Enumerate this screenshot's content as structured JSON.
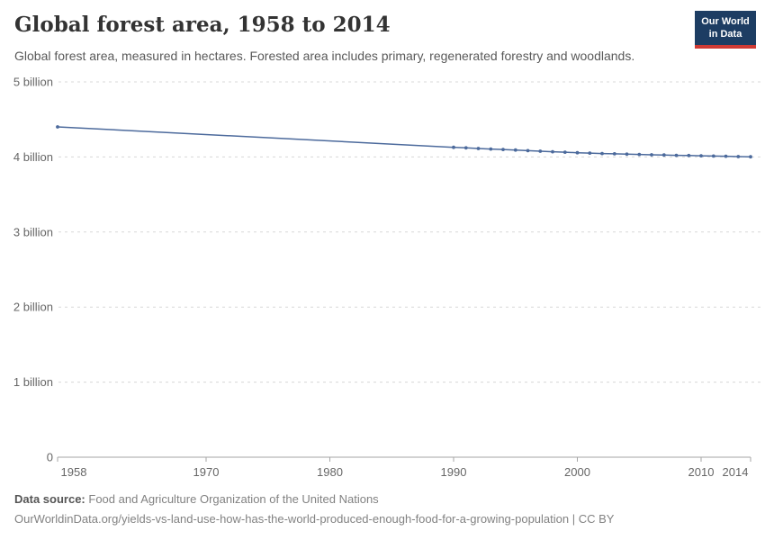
{
  "header": {
    "title": "Global forest area, 1958 to 2014",
    "subtitle": "Global forest area, measured in hectares. Forested area includes primary, regenerated forestry and woodlands.",
    "logo": {
      "line1": "Our World",
      "line2": "in Data",
      "bg_color": "#1d3d63",
      "bar_color": "#cf3a34"
    }
  },
  "chart_data": {
    "type": "line",
    "title": "Global forest area, 1958 to 2014",
    "series_name": "Global forest area",
    "unit": "hectares",
    "xlabel": "",
    "ylabel": "",
    "x": [
      1958,
      1990,
      1991,
      1992,
      1993,
      1994,
      1995,
      1996,
      1997,
      1998,
      1999,
      2000,
      2001,
      2002,
      2003,
      2004,
      2005,
      2006,
      2007,
      2008,
      2009,
      2010,
      2011,
      2012,
      2013,
      2014
    ],
    "values_billion_ha": [
      4.4,
      4.128,
      4.121,
      4.113,
      4.106,
      4.099,
      4.092,
      4.084,
      4.077,
      4.07,
      4.063,
      4.056,
      4.051,
      4.046,
      4.042,
      4.037,
      4.033,
      4.029,
      4.026,
      4.022,
      4.019,
      4.016,
      4.012,
      4.009,
      4.005,
      4.002
    ],
    "xlim": [
      1958,
      2014
    ],
    "ylim_billion": [
      0,
      5
    ],
    "x_ticks": [
      1958,
      1970,
      1980,
      1990,
      2000,
      2010,
      2014
    ],
    "y_ticks": [
      {
        "value": 0,
        "label": "0"
      },
      {
        "value": 1,
        "label": "1 billion"
      },
      {
        "value": 2,
        "label": "2 billion"
      },
      {
        "value": 3,
        "label": "3 billion"
      },
      {
        "value": 4,
        "label": "4 billion"
      },
      {
        "value": 5,
        "label": "5 billion"
      }
    ],
    "grid": "horizontal-dashed",
    "legend": "none",
    "line_color": "#4c6a9c",
    "grid_color": "#d8d8d8",
    "axis_color": "#a6a6a6"
  },
  "footer": {
    "source_label": "Data source:",
    "source_text": "Food and Agriculture Organization of the United Nations",
    "url_line": "OurWorldinData.org/yields-vs-land-use-how-has-the-world-produced-enough-food-for-a-growing-population | CC BY"
  }
}
